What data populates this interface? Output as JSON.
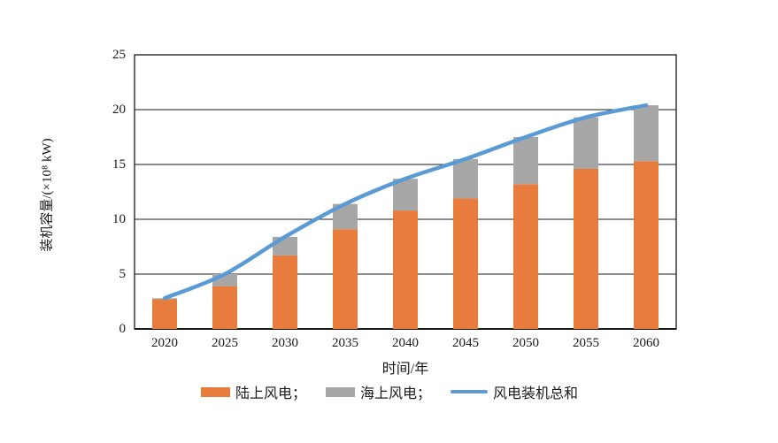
{
  "chart_data": {
    "type": "bar",
    "stacked": true,
    "categories": [
      "2020",
      "2025",
      "2030",
      "2035",
      "2040",
      "2045",
      "2050",
      "2055",
      "2060"
    ],
    "series": [
      {
        "name": "陆上风电",
        "type": "bar",
        "color": "#E87C3C",
        "values": [
          2.7,
          3.9,
          6.7,
          9.1,
          10.8,
          11.9,
          13.2,
          14.6,
          15.3
        ]
      },
      {
        "name": "海上风电",
        "type": "bar",
        "color": "#A7A7A7",
        "values": [
          0.1,
          1.1,
          1.7,
          2.3,
          2.9,
          3.6,
          4.3,
          4.7,
          5.1
        ]
      },
      {
        "name": "风电装机总和",
        "type": "line",
        "color": "#5B9BD5",
        "values": [
          2.8,
          5.0,
          8.4,
          11.4,
          13.7,
          15.5,
          17.5,
          19.3,
          20.4
        ]
      }
    ],
    "title": "",
    "xlabel": "时间/年",
    "ylabel": "装机容量/(×10⁸ kW)",
    "ylim": [
      0,
      25
    ],
    "yticks": [
      0,
      5,
      10,
      15,
      20,
      25
    ],
    "grid": true,
    "legend_position": "bottom"
  },
  "axes": {
    "y_title": "装机容量/(×10⁸ kW)",
    "x_title": "时间/年"
  },
  "legend": {
    "items": [
      {
        "label": "陆上风电；",
        "swatch": "bar-swatch",
        "color": "#E87C3C"
      },
      {
        "label": "海上风电；",
        "swatch": "bar-swatch",
        "color": "#A7A7A7"
      },
      {
        "label": "风电装机总和",
        "swatch": "line-swatch",
        "color": "#5B9BD5"
      }
    ]
  },
  "colors": {
    "onshore_bar": "#E87C3C",
    "offshore_bar": "#A7A7A7",
    "total_line": "#5B9BD5",
    "axis": "#1a1a1a",
    "grid": "#1a1a1a",
    "text": "#1a1a1a",
    "background": "#ffffff"
  }
}
